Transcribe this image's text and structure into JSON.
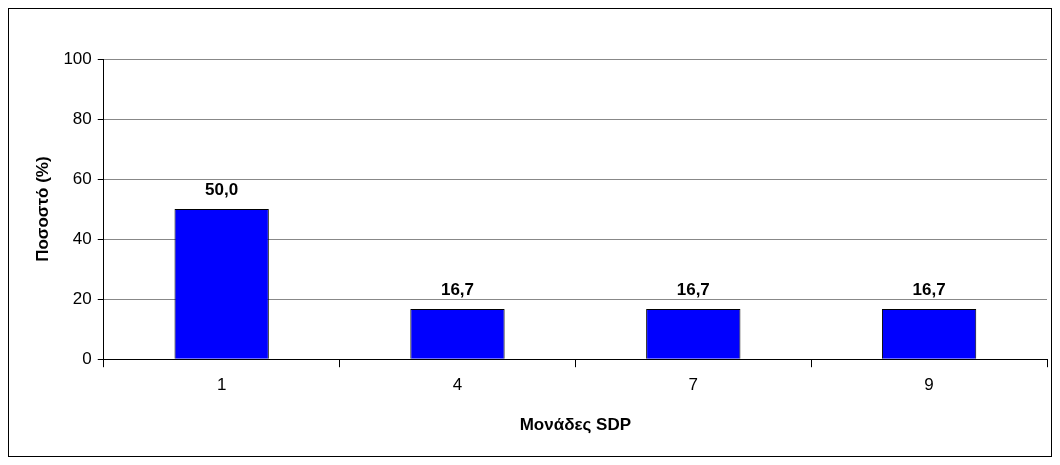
{
  "chart_data": {
    "type": "bar",
    "xlabel": "Μονάδες SDP",
    "ylabel": "Ποσοστό (%)",
    "categories": [
      "1",
      "4",
      "7",
      "9"
    ],
    "series": [
      {
        "color": "#0000ff",
        "values": [
          50.0,
          16.7,
          16.7,
          16.7
        ],
        "value_labels": [
          "50,0",
          "16,7",
          "16,7",
          "16,7"
        ]
      }
    ],
    "ylim": [
      0,
      100
    ],
    "yticks": [
      0,
      20,
      40,
      60,
      80,
      100
    ],
    "grid": "y",
    "legend": false
  }
}
